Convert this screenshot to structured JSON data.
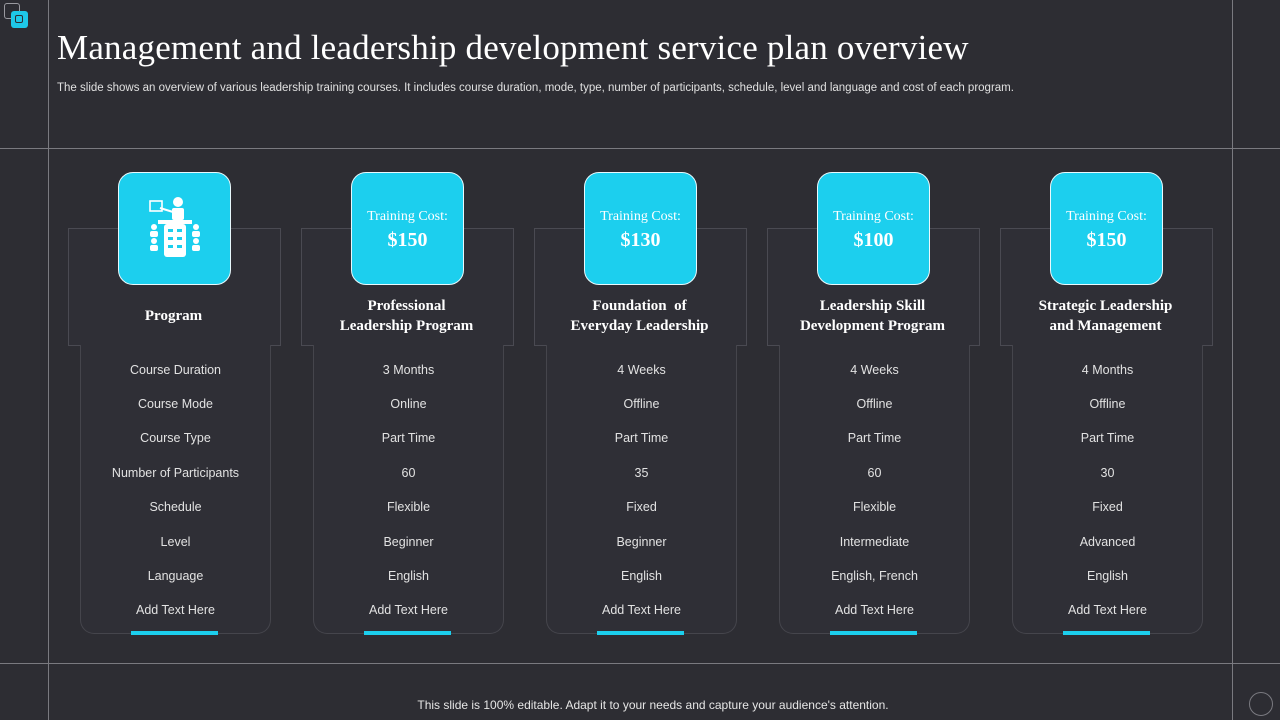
{
  "header": {
    "title": "Management and leadership development service plan overview",
    "subtitle": "The slide shows an overview of various leadership training courses. It includes course duration, mode, type, number of participants, schedule, level and language and cost of each program."
  },
  "accent_color": "#1ccfee",
  "columns": [
    {
      "icon": "presenter-meeting-icon",
      "title": "Program",
      "rows": [
        "Course Duration",
        "Course Mode",
        "Course Type",
        "Number of Participants",
        "Schedule",
        "Level",
        "Language",
        "Add Text Here"
      ]
    },
    {
      "cost_label": "Training Cost:",
      "cost": "$150",
      "title_line1": "Professional",
      "title_line2": "Leadership Program",
      "rows": [
        "3 Months",
        "Online",
        "Part Time",
        "60",
        "Flexible",
        "Beginner",
        "English",
        "Add Text Here"
      ]
    },
    {
      "cost_label": "Training Cost:",
      "cost": "$130",
      "title_line1": "Foundation  of",
      "title_line2": "Everyday Leadership",
      "rows": [
        "4 Weeks",
        "Offline",
        "Part Time",
        "35",
        "Fixed",
        "Beginner",
        "English",
        "Add Text Here"
      ]
    },
    {
      "cost_label": "Training Cost:",
      "cost": "$100",
      "title_line1": "Leadership Skill",
      "title_line2": "Development Program",
      "rows": [
        "4 Weeks",
        "Offline",
        "Part Time",
        "60",
        "Flexible",
        "Intermediate",
        "English, French",
        "Add Text Here"
      ]
    },
    {
      "cost_label": "Training Cost:",
      "cost": "$150",
      "title_line1": "Strategic Leadership",
      "title_line2": "and Management",
      "rows": [
        "4 Months",
        "Offline",
        "Part Time",
        "30",
        "Fixed",
        "Advanced",
        "English",
        "Add Text Here"
      ]
    }
  ],
  "footer": {
    "text": "This slide is 100% editable. Adapt it to your needs and capture your audience's attention."
  }
}
